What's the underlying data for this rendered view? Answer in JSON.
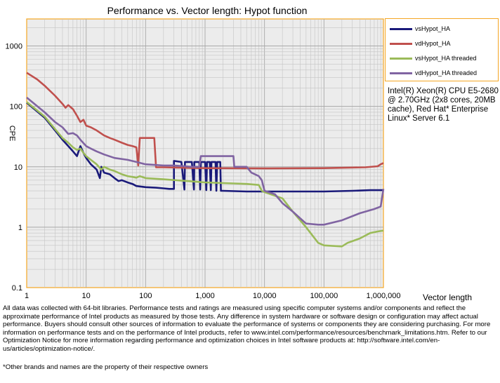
{
  "chart_data": {
    "type": "line",
    "title": "Performance vs. Vector length: Hypot function",
    "xlabel": "Vector length",
    "ylabel": "CPE",
    "xscale": "log",
    "yscale": "log",
    "xlim": [
      1,
      1000000
    ],
    "ylim": [
      0.1,
      2800
    ],
    "grid": true,
    "legend_position": "right",
    "x_ticks": [
      1,
      10,
      100,
      1000,
      10000,
      100000,
      1000000
    ],
    "x_tick_labels": [
      "1",
      "10",
      "100",
      "1,000",
      "10,000",
      "100,000",
      "1,000,000"
    ],
    "y_ticks": [
      0.1,
      1,
      10,
      100,
      1000
    ],
    "y_tick_labels": [
      "0.1",
      "1",
      "10",
      "100",
      "1000"
    ],
    "series": [
      {
        "name": "vsHypot_HA",
        "color": "#1a1a7a",
        "points": [
          [
            1,
            115
          ],
          [
            2,
            65
          ],
          [
            3,
            40
          ],
          [
            4,
            28
          ],
          [
            5,
            22
          ],
          [
            6,
            18
          ],
          [
            7,
            15
          ],
          [
            8,
            22
          ],
          [
            9,
            17
          ],
          [
            10,
            14
          ],
          [
            12,
            11
          ],
          [
            15,
            9
          ],
          [
            17,
            6.5
          ],
          [
            18,
            10
          ],
          [
            20,
            8
          ],
          [
            25,
            7.5
          ],
          [
            30,
            6.5
          ],
          [
            35,
            5.8
          ],
          [
            40,
            6
          ],
          [
            50,
            5.5
          ],
          [
            60,
            5.2
          ],
          [
            70,
            4.8
          ],
          [
            100,
            4.6
          ],
          [
            150,
            4.5
          ],
          [
            200,
            4.4
          ],
          [
            250,
            4.3
          ],
          [
            300,
            4.3
          ],
          [
            300,
            12.5
          ],
          [
            400,
            12
          ],
          [
            450,
            4.2
          ],
          [
            460,
            12
          ],
          [
            600,
            12
          ],
          [
            650,
            4.2
          ],
          [
            660,
            12
          ],
          [
            800,
            12
          ],
          [
            830,
            4.2
          ],
          [
            850,
            12
          ],
          [
            1000,
            12
          ],
          [
            1050,
            4.1
          ],
          [
            1080,
            12
          ],
          [
            1200,
            12
          ],
          [
            1250,
            4.1
          ],
          [
            1280,
            12
          ],
          [
            1500,
            12
          ],
          [
            1550,
            4.0
          ],
          [
            1600,
            12
          ],
          [
            1800,
            12
          ],
          [
            1850,
            4.0
          ],
          [
            2000,
            4.0
          ],
          [
            5000,
            3.9
          ],
          [
            10000,
            3.9
          ],
          [
            50000,
            3.9
          ],
          [
            100000,
            3.9
          ],
          [
            300000,
            4.0
          ],
          [
            600000,
            4.1
          ],
          [
            1000000,
            4.1
          ]
        ]
      },
      {
        "name": "vdHypot_HA",
        "color": "#c0504d",
        "points": [
          [
            1,
            360
          ],
          [
            1.5,
            280
          ],
          [
            2,
            220
          ],
          [
            3,
            150
          ],
          [
            4,
            110
          ],
          [
            4.5,
            95
          ],
          [
            5,
            105
          ],
          [
            6,
            90
          ],
          [
            7,
            70
          ],
          [
            8,
            55
          ],
          [
            9,
            60
          ],
          [
            10,
            48
          ],
          [
            12,
            45
          ],
          [
            15,
            40
          ],
          [
            20,
            33
          ],
          [
            25,
            30
          ],
          [
            30,
            28
          ],
          [
            40,
            25
          ],
          [
            50,
            23
          ],
          [
            60,
            22
          ],
          [
            70,
            21
          ],
          [
            75,
            10.5
          ],
          [
            80,
            30
          ],
          [
            100,
            30
          ],
          [
            140,
            30
          ],
          [
            150,
            9.8
          ],
          [
            200,
            9.8
          ],
          [
            500,
            9.6
          ],
          [
            1000,
            9.5
          ],
          [
            10000,
            9.4
          ],
          [
            100000,
            9.5
          ],
          [
            500000,
            9.8
          ],
          [
            800000,
            10.2
          ],
          [
            900000,
            11
          ],
          [
            1000000,
            11.5
          ]
        ]
      },
      {
        "name": "vsHypot_HA threaded",
        "color": "#9bbb59",
        "points": [
          [
            1,
            118
          ],
          [
            2,
            68
          ],
          [
            3,
            42
          ],
          [
            4,
            30
          ],
          [
            5,
            25
          ],
          [
            6,
            21
          ],
          [
            7,
            19
          ],
          [
            8,
            20
          ],
          [
            9,
            17
          ],
          [
            10,
            15
          ],
          [
            12,
            13
          ],
          [
            15,
            11
          ],
          [
            18,
            9
          ],
          [
            20,
            10
          ],
          [
            25,
            9
          ],
          [
            30,
            8.5
          ],
          [
            40,
            7.5
          ],
          [
            50,
            7
          ],
          [
            60,
            6.8
          ],
          [
            70,
            6.6
          ],
          [
            80,
            7
          ],
          [
            100,
            6.5
          ],
          [
            200,
            6.2
          ],
          [
            500,
            5.8
          ],
          [
            1000,
            5.5
          ],
          [
            3000,
            5.3
          ],
          [
            5000,
            5.2
          ],
          [
            8000,
            5.0
          ],
          [
            9000,
            4.0
          ],
          [
            10000,
            3.8
          ],
          [
            20000,
            3.0
          ],
          [
            30000,
            1.8
          ],
          [
            50000,
            1.0
          ],
          [
            80000,
            0.55
          ],
          [
            100000,
            0.5
          ],
          [
            200000,
            0.48
          ],
          [
            250000,
            0.55
          ],
          [
            400000,
            0.65
          ],
          [
            600000,
            0.8
          ],
          [
            800000,
            0.85
          ],
          [
            1000000,
            0.88
          ]
        ]
      },
      {
        "name": "vdHypot_HA threaded",
        "color": "#8064a2",
        "points": [
          [
            1,
            140
          ],
          [
            2,
            80
          ],
          [
            3,
            55
          ],
          [
            4,
            45
          ],
          [
            5,
            35
          ],
          [
            6,
            36
          ],
          [
            7,
            33
          ],
          [
            8,
            28
          ],
          [
            10,
            22
          ],
          [
            12,
            20
          ],
          [
            15,
            18
          ],
          [
            20,
            16
          ],
          [
            30,
            14
          ],
          [
            50,
            13
          ],
          [
            70,
            12
          ],
          [
            100,
            11
          ],
          [
            200,
            10.5
          ],
          [
            300,
            10.5
          ],
          [
            600,
            10
          ],
          [
            800,
            10
          ],
          [
            850,
            15
          ],
          [
            1000,
            15
          ],
          [
            2000,
            15
          ],
          [
            3000,
            15
          ],
          [
            3100,
            10
          ],
          [
            5000,
            10
          ],
          [
            6000,
            8
          ],
          [
            8000,
            7
          ],
          [
            9000,
            6
          ],
          [
            10000,
            4.0
          ],
          [
            15000,
            3.5
          ],
          [
            20000,
            2.5
          ],
          [
            30000,
            1.8
          ],
          [
            50000,
            1.15
          ],
          [
            80000,
            1.1
          ],
          [
            100000,
            1.1
          ],
          [
            200000,
            1.3
          ],
          [
            400000,
            1.7
          ],
          [
            700000,
            2.0
          ],
          [
            900000,
            2.2
          ],
          [
            1000000,
            4.3
          ]
        ]
      }
    ]
  },
  "side_note": "Intel(R) Xeon(R) CPU E5-2680 @ 2.70GHz (2x8 cores, 20MB cache), Red Hat* Enterprise Linux* Server 6.1",
  "disclaimer": "All data was collected with 64-bit libraries. Performance tests and ratings are measured using specific computer systems and/or components and reflect the approximate performance of Intel products as measured by those tests. Any difference in system hardware or software design or configuration may affect actual performance. Buyers should consult other sources of information to evaluate the performance of systems or components they are considering purchasing. For more information on performance tests and on the performance of Intel products, refer to www.intel.com/performance/resources/benchmark_limitations.htm. Refer to our Optimization Notice for more information regarding performance and optimization choices in Intel software products at: http://software.intel.com/en-us/articles/optimization-notice/.",
  "footnote": "*Other brands and names are the property of their respective owners"
}
